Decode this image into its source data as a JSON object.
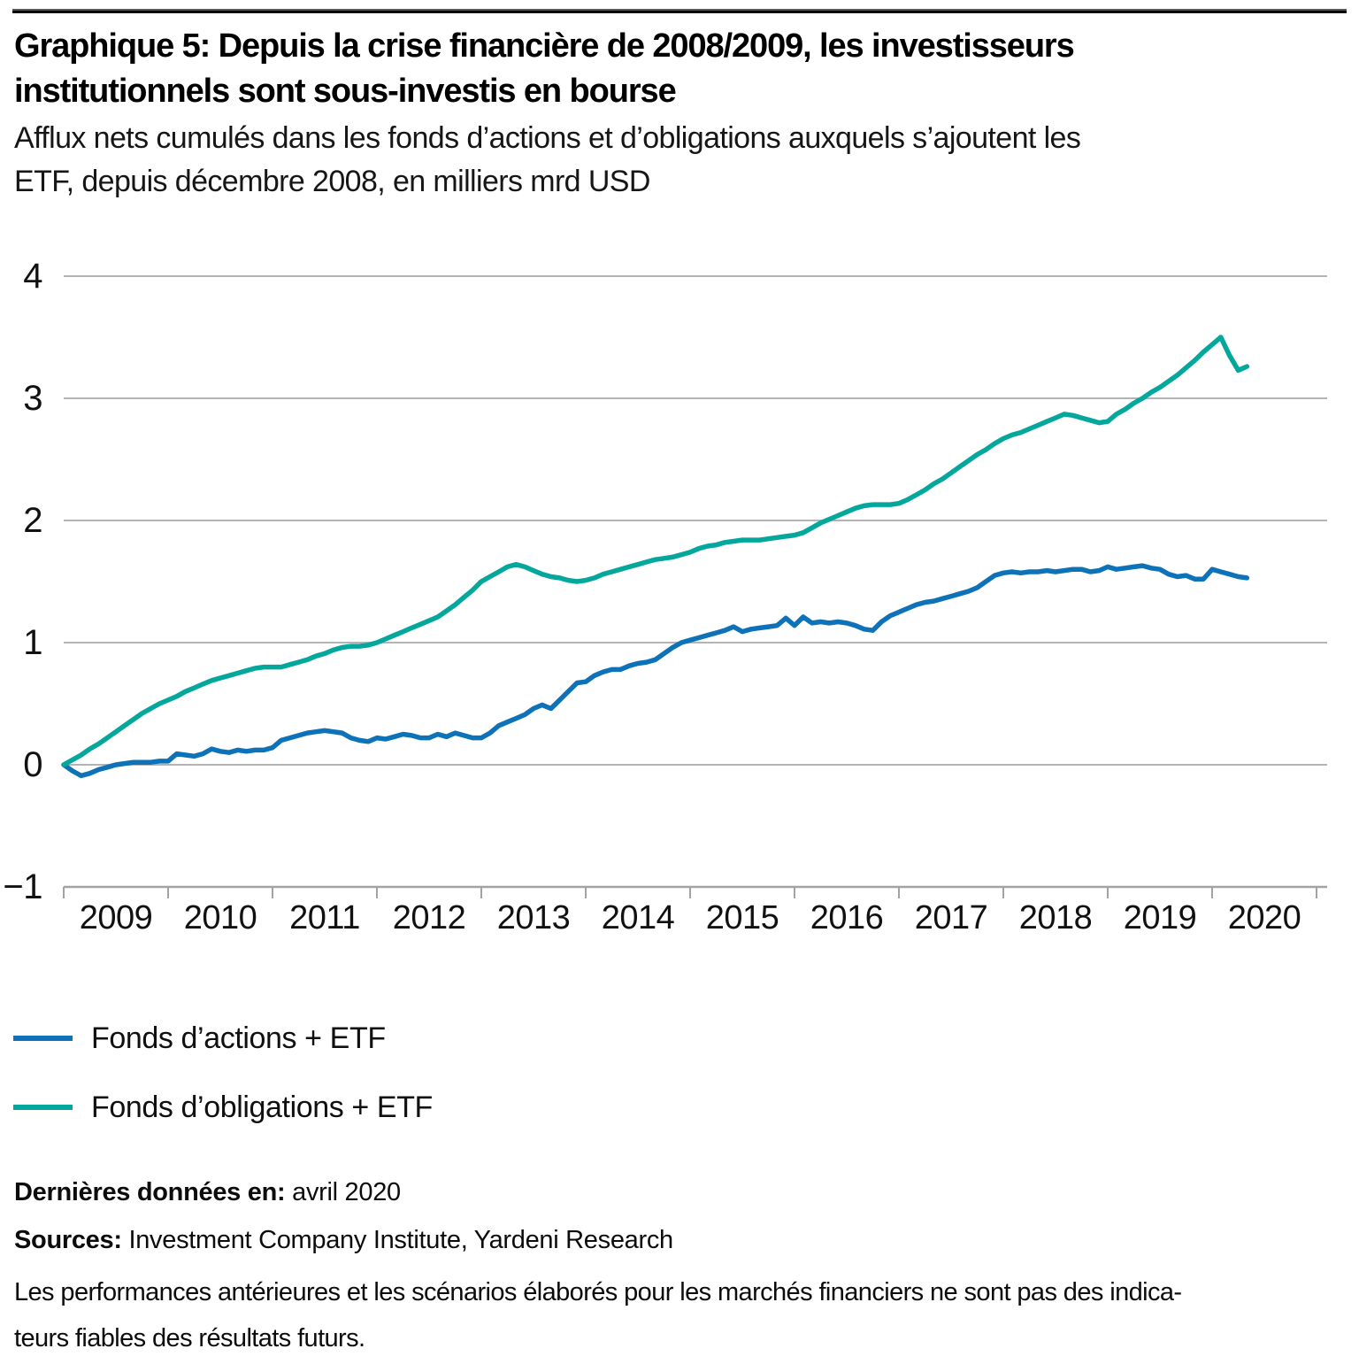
{
  "header": {
    "title": "Graphique 5: Depuis la crise financière de 2008/2009, les investisseurs institutionnels sont sous-investis en bourse",
    "title_lines": [
      "Graphique 5: Depuis la crise financière de 2008/2009, les investisseurs",
      "institutionnels sont sous-investis en bourse"
    ],
    "subtitle": "Afflux nets cumulés dans les fonds d’actions et d’obligations auxquels s’ajoutent les ETF, depuis décembre 2008, en milliers mrd USD",
    "subtitle_lines": [
      "Afflux nets cumulés dans les fonds d’actions et d’obligations auxquels s’ajoutent les",
      "ETF, depuis décembre 2008, en milliers mrd USD"
    ]
  },
  "chart_data": {
    "type": "line",
    "title": "Afflux nets cumulés dans les fonds d’actions et d’obligations auxquels s’ajoutent les ETF",
    "unit": "milliers mrd USD",
    "grid": true,
    "legend_position": "bottom-left",
    "x_axis": {
      "label": "",
      "start": "décembre 2008",
      "end": "avril 2020",
      "frequency": "mensuelle",
      "tick_labels": [
        "2009",
        "2010",
        "2011",
        "2012",
        "2013",
        "2014",
        "2015",
        "2016",
        "2017",
        "2018",
        "2019",
        "2020"
      ]
    },
    "y_axis": {
      "label": "",
      "min": -1,
      "max": 4,
      "ticks": [
        -1,
        0,
        1,
        2,
        3,
        4
      ]
    },
    "series": [
      {
        "name": "Fonds d’actions + ETF",
        "color": "#0d72b8",
        "values": [
          0.0,
          -0.05,
          -0.09,
          -0.07,
          -0.04,
          -0.02,
          0.0,
          0.01,
          0.02,
          0.02,
          0.02,
          0.03,
          0.03,
          0.09,
          0.08,
          0.07,
          0.09,
          0.13,
          0.11,
          0.1,
          0.12,
          0.11,
          0.12,
          0.12,
          0.14,
          0.2,
          0.22,
          0.24,
          0.26,
          0.27,
          0.28,
          0.27,
          0.26,
          0.22,
          0.2,
          0.19,
          0.22,
          0.21,
          0.23,
          0.25,
          0.24,
          0.22,
          0.22,
          0.25,
          0.23,
          0.26,
          0.24,
          0.22,
          0.22,
          0.26,
          0.32,
          0.35,
          0.38,
          0.41,
          0.46,
          0.49,
          0.46,
          0.53,
          0.6,
          0.67,
          0.68,
          0.73,
          0.76,
          0.78,
          0.78,
          0.81,
          0.83,
          0.84,
          0.86,
          0.91,
          0.96,
          1.0,
          1.02,
          1.04,
          1.06,
          1.08,
          1.1,
          1.13,
          1.09,
          1.11,
          1.12,
          1.13,
          1.14,
          1.2,
          1.14,
          1.21,
          1.16,
          1.17,
          1.16,
          1.17,
          1.16,
          1.14,
          1.11,
          1.1,
          1.17,
          1.22,
          1.25,
          1.28,
          1.31,
          1.33,
          1.34,
          1.36,
          1.38,
          1.4,
          1.42,
          1.45,
          1.5,
          1.55,
          1.57,
          1.58,
          1.57,
          1.58,
          1.58,
          1.59,
          1.58,
          1.59,
          1.6,
          1.6,
          1.58,
          1.59,
          1.62,
          1.6,
          1.61,
          1.62,
          1.63,
          1.61,
          1.6,
          1.56,
          1.54,
          1.55,
          1.52,
          1.52,
          1.6,
          1.58,
          1.56,
          1.54,
          1.53
        ]
      },
      {
        "name": "Fonds d’obligations + ETF",
        "color": "#04a79c",
        "values": [
          0.0,
          0.04,
          0.08,
          0.13,
          0.17,
          0.22,
          0.27,
          0.32,
          0.37,
          0.42,
          0.46,
          0.5,
          0.53,
          0.56,
          0.6,
          0.63,
          0.66,
          0.69,
          0.71,
          0.73,
          0.75,
          0.77,
          0.79,
          0.8,
          0.8,
          0.8,
          0.82,
          0.84,
          0.86,
          0.89,
          0.91,
          0.94,
          0.96,
          0.97,
          0.97,
          0.98,
          1.0,
          1.03,
          1.06,
          1.09,
          1.12,
          1.15,
          1.18,
          1.21,
          1.26,
          1.31,
          1.37,
          1.43,
          1.5,
          1.54,
          1.58,
          1.62,
          1.64,
          1.62,
          1.59,
          1.56,
          1.54,
          1.53,
          1.51,
          1.5,
          1.51,
          1.53,
          1.56,
          1.58,
          1.6,
          1.62,
          1.64,
          1.66,
          1.68,
          1.69,
          1.7,
          1.72,
          1.74,
          1.77,
          1.79,
          1.8,
          1.82,
          1.83,
          1.84,
          1.84,
          1.84,
          1.85,
          1.86,
          1.87,
          1.88,
          1.9,
          1.94,
          1.98,
          2.01,
          2.04,
          2.07,
          2.1,
          2.12,
          2.13,
          2.13,
          2.13,
          2.14,
          2.17,
          2.21,
          2.25,
          2.3,
          2.34,
          2.39,
          2.44,
          2.49,
          2.54,
          2.58,
          2.63,
          2.67,
          2.7,
          2.72,
          2.75,
          2.78,
          2.81,
          2.84,
          2.87,
          2.86,
          2.84,
          2.82,
          2.8,
          2.81,
          2.87,
          2.91,
          2.96,
          3.0,
          3.05,
          3.09,
          3.14,
          3.19,
          3.25,
          3.31,
          3.38,
          3.44,
          3.5,
          3.35,
          3.23,
          3.26
        ]
      }
    ]
  },
  "footer": {
    "last_data_label": "Dernières données en:",
    "last_data_value": "avril 2020",
    "sources_label": "Sources:",
    "sources_value": "Investment Company Institute, Yardeni Research",
    "disclaimer_lines": [
      "Les performances antérieures et les scénarios élaborés pour les marchés financiers ne sont pas des indica-",
      "teurs fiables des résultats futurs."
    ]
  }
}
